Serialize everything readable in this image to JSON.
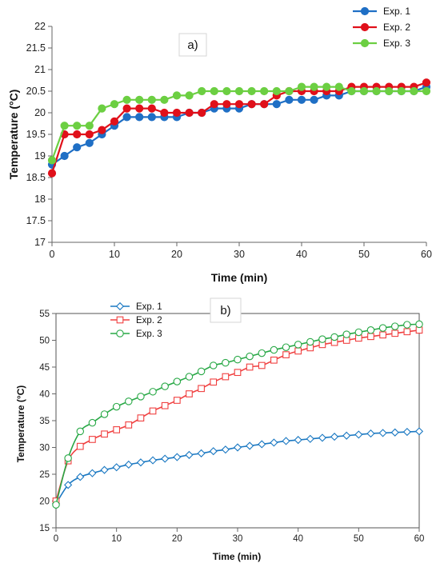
{
  "chart_data": [
    {
      "type": "line",
      "title": "a)",
      "xlabel": "Time (min)",
      "ylabel": "Temperature (°C)",
      "xlim": [
        0,
        60
      ],
      "ylim": [
        17,
        22
      ],
      "xticks": [
        "0",
        "10",
        "20",
        "30",
        "40",
        "50",
        "60"
      ],
      "yticks": [
        "17",
        "17.5",
        "18",
        "18.5",
        "19",
        "19.5",
        "20",
        "20.5",
        "21",
        "21.5",
        "22"
      ],
      "grid": false,
      "legend_position": "top-right",
      "x": [
        0,
        2,
        4,
        6,
        8,
        10,
        12,
        14,
        16,
        18,
        20,
        22,
        24,
        26,
        28,
        30,
        32,
        34,
        36,
        38,
        40,
        42,
        44,
        46,
        48,
        50,
        52,
        54,
        56,
        58,
        60
      ],
      "series": [
        {
          "name": "Exp. 1",
          "color": "#1f6fc5",
          "marker": "filled-circle",
          "values": [
            18.8,
            19.0,
            19.2,
            19.3,
            19.5,
            19.7,
            19.9,
            19.9,
            19.9,
            19.9,
            19.9,
            20.0,
            20.0,
            20.1,
            20.1,
            20.1,
            20.2,
            20.2,
            20.2,
            20.3,
            20.3,
            20.3,
            20.4,
            20.4,
            20.5,
            20.5,
            20.5,
            20.5,
            20.5,
            20.5,
            20.6
          ]
        },
        {
          "name": "Exp. 2",
          "color": "#e0101a",
          "marker": "filled-circle",
          "values": [
            18.6,
            19.5,
            19.5,
            19.5,
            19.6,
            19.8,
            20.1,
            20.1,
            20.1,
            20.0,
            20.0,
            20.0,
            20.0,
            20.2,
            20.2,
            20.2,
            20.2,
            20.2,
            20.4,
            20.5,
            20.5,
            20.5,
            20.5,
            20.5,
            20.6,
            20.6,
            20.6,
            20.6,
            20.6,
            20.6,
            20.7
          ]
        },
        {
          "name": "Exp. 3",
          "color": "#6ccf42",
          "marker": "filled-circle",
          "values": [
            18.9,
            19.7,
            19.7,
            19.7,
            20.1,
            20.2,
            20.3,
            20.3,
            20.3,
            20.3,
            20.4,
            20.4,
            20.5,
            20.5,
            20.5,
            20.5,
            20.5,
            20.5,
            20.5,
            20.5,
            20.6,
            20.6,
            20.6,
            20.6,
            20.5,
            20.5,
            20.5,
            20.5,
            20.5,
            20.5,
            20.5
          ]
        }
      ]
    },
    {
      "type": "line",
      "title": "b)",
      "xlabel": "Time (min)",
      "ylabel": "Temperature (°C)",
      "xlim": [
        0,
        60
      ],
      "ylim": [
        15,
        55
      ],
      "xticks": [
        "0",
        "10",
        "20",
        "30",
        "40",
        "50",
        "60"
      ],
      "yticks": [
        "15",
        "20",
        "25",
        "30",
        "35",
        "40",
        "45",
        "50",
        "55"
      ],
      "grid": false,
      "legend_position": "top-left",
      "x": [
        0,
        2,
        4,
        6,
        8,
        10,
        12,
        14,
        16,
        18,
        20,
        22,
        24,
        26,
        28,
        30,
        32,
        34,
        36,
        38,
        40,
        42,
        44,
        46,
        48,
        50,
        52,
        54,
        56,
        58,
        60
      ],
      "series": [
        {
          "name": "Exp. 1",
          "color": "#1a78c2",
          "marker": "open-diamond",
          "values": [
            19.5,
            23.0,
            24.5,
            25.2,
            25.8,
            26.3,
            26.8,
            27.2,
            27.6,
            27.9,
            28.2,
            28.6,
            28.9,
            29.3,
            29.6,
            30.0,
            30.3,
            30.6,
            30.9,
            31.2,
            31.4,
            31.6,
            31.8,
            32.0,
            32.2,
            32.4,
            32.6,
            32.7,
            32.8,
            32.9,
            33.0
          ]
        },
        {
          "name": "Exp. 2",
          "color": "#f04040",
          "marker": "open-square",
          "values": [
            20.0,
            27.5,
            30.2,
            31.5,
            32.5,
            33.3,
            34.2,
            35.5,
            36.8,
            37.8,
            38.8,
            40.0,
            41.0,
            42.2,
            43.2,
            44.0,
            45.0,
            45.3,
            46.3,
            47.3,
            48.0,
            48.6,
            49.2,
            49.6,
            50.0,
            50.4,
            50.7,
            51.0,
            51.3,
            51.6,
            51.9
          ]
        },
        {
          "name": "Exp. 3",
          "color": "#27a845",
          "marker": "open-circle",
          "values": [
            19.3,
            28.0,
            33.0,
            34.6,
            36.2,
            37.6,
            38.6,
            39.5,
            40.4,
            41.4,
            42.3,
            43.2,
            44.2,
            45.3,
            45.8,
            46.4,
            47.0,
            47.6,
            48.2,
            48.7,
            49.2,
            49.7,
            50.2,
            50.6,
            51.1,
            51.5,
            51.9,
            52.3,
            52.6,
            52.9,
            53.0
          ]
        }
      ]
    }
  ]
}
